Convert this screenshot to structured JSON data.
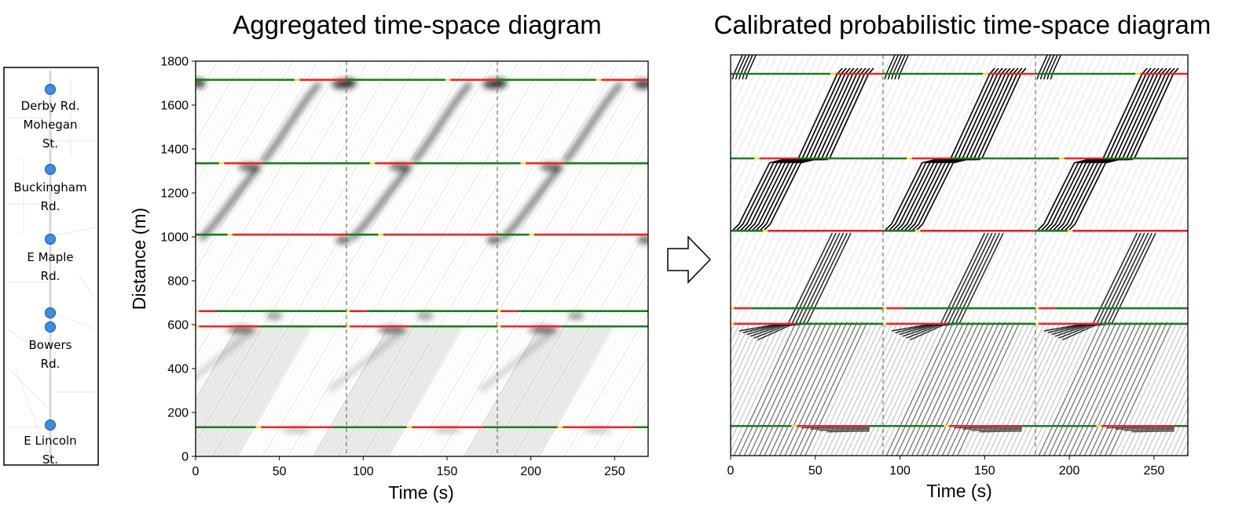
{
  "stations_panel": {
    "stations": [
      {
        "label_lines": [
          "Derby Rd.",
          "Mohegan",
          "St."
        ]
      },
      {
        "label_lines": [
          "Buckingham",
          "Rd."
        ]
      },
      {
        "label_lines": [
          "E Maple",
          "Rd."
        ]
      },
      {
        "label_lines": [
          "Bowers",
          "Rd."
        ]
      },
      {
        "label_lines": [
          "E Lincoln",
          "St."
        ]
      }
    ],
    "marker_color": "#3b8fe6"
  },
  "colors": {
    "green": "#1f7a1f",
    "red": "#e8262c",
    "yellow": "#f3e832",
    "trajectory": "#000000"
  },
  "chart_data": [
    {
      "type": "time-space diagram",
      "title": "Aggregated time-space diagram",
      "xlabel": "Time (s)",
      "ylabel": "Distance (m)",
      "xlim": [
        0,
        270
      ],
      "ylim": [
        0,
        1800
      ],
      "xticks": [
        0,
        50,
        100,
        150,
        200,
        250
      ],
      "yticks": [
        0,
        200,
        400,
        600,
        800,
        1000,
        1200,
        1400,
        1600,
        1800
      ],
      "cycle_boundaries": [
        90,
        180
      ],
      "cycle_length": 90,
      "signals": [
        {
          "distance": 1715,
          "green_end": 59,
          "yellow_end": 62
        },
        {
          "distance": 1335,
          "green_end": 14,
          "yellow_end": 17,
          "red_end": 40
        },
        {
          "distance": 1010,
          "green_end": 19,
          "yellow_end": 22
        },
        {
          "distance": 662,
          "red_end": 12,
          "yellow_end": 2
        },
        {
          "distance": 592,
          "red_end": 38,
          "yellow_end": 2
        },
        {
          "distance": 133,
          "green_end": 36,
          "yellow_end": 39,
          "red_end": 82
        }
      ],
      "trajectory_style": "aggregated density"
    },
    {
      "type": "time-space diagram",
      "title": "Calibrated probabilistic time-space diagram",
      "xlabel": "Time (s)",
      "ylabel": "",
      "xlim": [
        0,
        270
      ],
      "ylim": [
        0,
        1800
      ],
      "xticks": [
        0,
        50,
        100,
        150,
        200,
        250
      ],
      "cycle_boundaries": [
        90,
        180
      ],
      "cycle_length": 90,
      "signals": [
        {
          "distance": 1715,
          "green_end": 59,
          "yellow_end": 62
        },
        {
          "distance": 1335,
          "green_end": 14,
          "yellow_end": 17,
          "red_end": 40
        },
        {
          "distance": 1010,
          "green_end": 19,
          "yellow_end": 22
        },
        {
          "distance": 662,
          "red_end": 12,
          "yellow_end": 2
        },
        {
          "distance": 592,
          "red_end": 38,
          "yellow_end": 2
        },
        {
          "distance": 133,
          "green_end": 36,
          "yellow_end": 39,
          "red_end": 82
        }
      ],
      "trajectory_style": "probabilistic individual trajectories"
    }
  ]
}
